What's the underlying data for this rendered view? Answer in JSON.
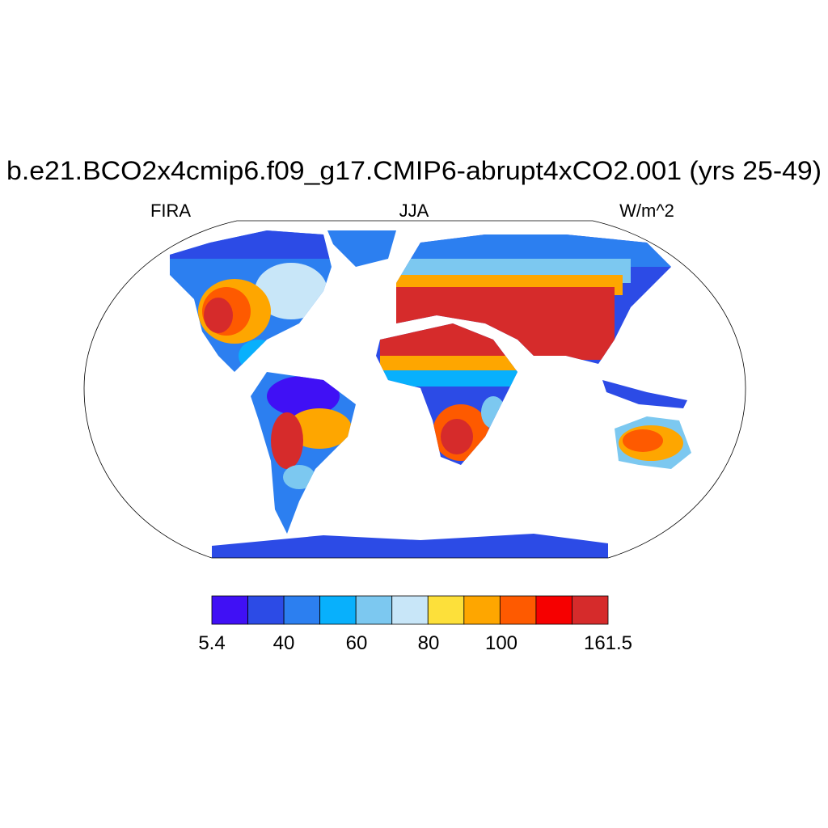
{
  "title": "b.e21.BCO2x4cmip6.f09_g17.CMIP6-abrupt4xCO2.001 (yrs 25-49)",
  "left_label": "FIRA",
  "center_label": "JJA",
  "right_label": "W/m^2",
  "projection": "Robinson",
  "colorbar": {
    "colors": [
      "#4010f5",
      "#2c4be6",
      "#2c7ff0",
      "#08b0fc",
      "#7cc8f0",
      "#c8e6f8",
      "#fde03a",
      "#fea600",
      "#fe5a00",
      "#f60000",
      "#d62b2b"
    ],
    "labels": [
      "5.4",
      "40",
      "60",
      "80",
      "100",
      "161.5"
    ]
  }
}
